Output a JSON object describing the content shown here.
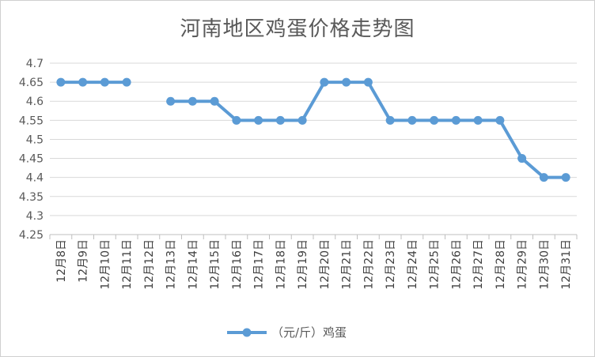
{
  "chart_data": {
    "type": "line",
    "title": "河南地区鸡蛋价格走势图",
    "categories": [
      "12月8日",
      "12月9日",
      "12月10日",
      "12月11日",
      "12月12日",
      "12月13日",
      "12月14日",
      "12月15日",
      "12月16日",
      "12月17日",
      "12月18日",
      "12月19日",
      "12月20日",
      "12月21日",
      "12月22日",
      "12月23日",
      "12月24日",
      "12月25日",
      "12月26日",
      "12月27日",
      "12月28日",
      "12月29日",
      "12月30日",
      "12月31日"
    ],
    "series": [
      {
        "name": "（元/斤）鸡蛋",
        "color": "#5B9BD5",
        "values": [
          4.65,
          4.65,
          4.65,
          4.65,
          null,
          4.6,
          4.6,
          4.6,
          4.55,
          4.55,
          4.55,
          4.55,
          4.65,
          4.65,
          4.65,
          4.55,
          4.55,
          4.55,
          4.55,
          4.55,
          4.55,
          4.45,
          4.4,
          4.4
        ]
      }
    ],
    "ylim": [
      4.25,
      4.7
    ],
    "yticks": [
      "4.25",
      "4.3",
      "4.35",
      "4.4",
      "4.45",
      "4.5",
      "4.55",
      "4.6",
      "4.65",
      "4.7"
    ],
    "xlabel": "",
    "ylabel": "",
    "grid": true,
    "legend": "bottom"
  }
}
